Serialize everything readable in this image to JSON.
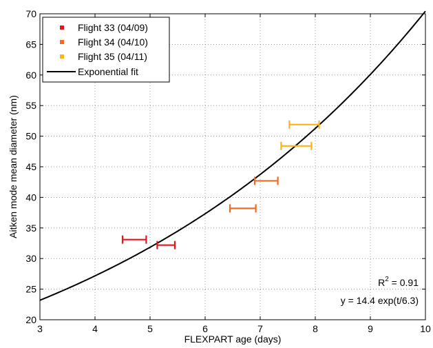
{
  "chart_data": {
    "type": "scatter",
    "title": "",
    "xlabel": "FLEXPART age (days)",
    "ylabel": "Aitken mode mean diameter (nm)",
    "xlim": [
      3,
      10
    ],
    "ylim": [
      20,
      70
    ],
    "xticks": [
      3,
      4,
      5,
      6,
      7,
      8,
      9,
      10
    ],
    "yticks": [
      20,
      25,
      30,
      35,
      40,
      45,
      50,
      55,
      60,
      65,
      70
    ],
    "grid": true,
    "legend_position": "top-left",
    "series": [
      {
        "name": "Flight 33 (04/09)",
        "color": "#e8141c",
        "points": [
          {
            "x_low": 4.5,
            "x_high": 4.93,
            "y": 33.1
          },
          {
            "x_low": 5.13,
            "x_high": 5.45,
            "y": 32.2
          }
        ]
      },
      {
        "name": "Flight 34 (04/10)",
        "color": "#f36a21",
        "points": [
          {
            "x_low": 6.45,
            "x_high": 6.92,
            "y": 38.2
          },
          {
            "x_low": 6.9,
            "x_high": 7.32,
            "y": 42.7
          }
        ]
      },
      {
        "name": "Flight 35 (04/11)",
        "color": "#fbb316",
        "points": [
          {
            "x_low": 7.38,
            "x_high": 7.93,
            "y": 48.4
          },
          {
            "x_low": 7.53,
            "x_high": 8.07,
            "y": 51.9
          }
        ]
      }
    ],
    "fit": {
      "name": "Exponential fit",
      "color": "#000000",
      "a": 14.4,
      "tau": 6.3
    },
    "annotations": {
      "r2_base": "R",
      "r2_sup": "2",
      "r2_value": " = 0.91",
      "equation": "y = 14.4 exp(t/6.3)"
    }
  }
}
